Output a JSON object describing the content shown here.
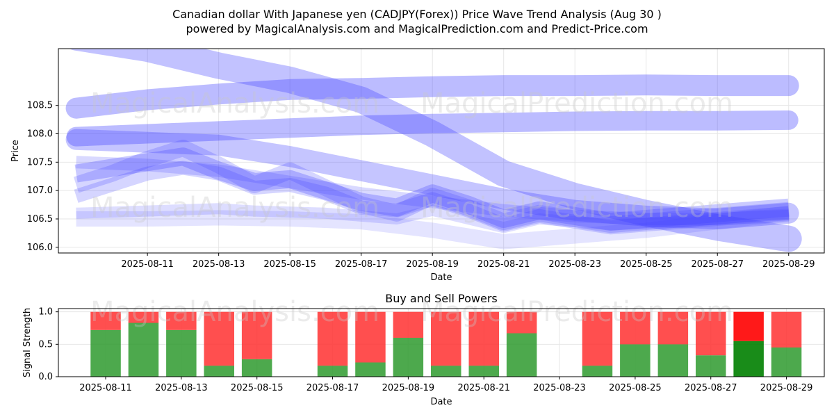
{
  "title_line1": "Canadian dollar With Japanese yen (CADJPY(Forex)) Price Wave Trend Analysis (Aug 30 )",
  "title_line2": "powered by MagicalAnalysis.com and MagicalPrediction.com and Predict-Price.com",
  "watermarks": [
    "MagicalAnalysis.com",
    "MagicalPrediction.com"
  ],
  "colors": {
    "wave": "#4040ff",
    "buy": "#2e9a2e",
    "sell": "#ff3030",
    "buy_strong": "#008000",
    "sell_strong": "#ff0000"
  },
  "chart_data": [
    {
      "type": "line",
      "title": "",
      "xlabel": "Date",
      "ylabel": "Price",
      "ylim": [
        105.9,
        109.5
      ],
      "xlim": [
        "2025-08-08T12:00",
        "2025-08-30T00:00"
      ],
      "grid": true,
      "x_ticks": [
        "2025-08-11",
        "2025-08-13",
        "2025-08-15",
        "2025-08-17",
        "2025-08-19",
        "2025-08-21",
        "2025-08-23",
        "2025-08-25",
        "2025-08-27",
        "2025-08-29"
      ],
      "y_ticks": [
        106.0,
        106.5,
        107.0,
        107.5,
        108.0,
        108.5
      ],
      "series": [
        {
          "x": [
            "2025-08-09",
            "2025-08-11",
            "2025-08-13",
            "2025-08-15",
            "2025-08-17",
            "2025-08-19",
            "2025-08-21",
            "2025-08-23",
            "2025-08-25",
            "2025-08-27",
            "2025-08-29"
          ],
          "values": [
            108.45,
            108.6,
            108.7,
            108.78,
            108.8,
            108.83,
            108.85,
            108.85,
            108.86,
            108.85,
            108.85
          ]
        },
        {
          "x": [
            "2025-08-09",
            "2025-08-11",
            "2025-08-13",
            "2025-08-15",
            "2025-08-17",
            "2025-08-19",
            "2025-08-21",
            "2025-08-23",
            "2025-08-25",
            "2025-08-27",
            "2025-08-29"
          ],
          "values": [
            107.95,
            108.0,
            108.05,
            108.1,
            108.15,
            108.18,
            108.2,
            108.22,
            108.23,
            108.23,
            108.24
          ]
        },
        {
          "x": [
            "2025-08-09",
            "2025-08-11",
            "2025-08-13",
            "2025-08-15",
            "2025-08-17",
            "2025-08-19",
            "2025-08-21",
            "2025-08-23",
            "2025-08-25",
            "2025-08-27",
            "2025-08-29"
          ],
          "values": [
            109.7,
            109.5,
            109.2,
            108.95,
            108.6,
            108.0,
            107.3,
            106.9,
            106.6,
            106.35,
            106.15
          ]
        },
        {
          "x": [
            "2025-08-09",
            "2025-08-11",
            "2025-08-13",
            "2025-08-15",
            "2025-08-17",
            "2025-08-19",
            "2025-08-21",
            "2025-08-23",
            "2025-08-25",
            "2025-08-27",
            "2025-08-29"
          ],
          "values": [
            107.9,
            107.85,
            107.8,
            107.6,
            107.35,
            107.1,
            106.85,
            106.65,
            106.55,
            106.5,
            106.6
          ]
        },
        {
          "x": [
            "2025-08-09",
            "2025-08-10",
            "2025-08-11",
            "2025-08-12",
            "2025-08-13",
            "2025-08-14",
            "2025-08-15",
            "2025-08-16",
            "2025-08-17",
            "2025-08-18",
            "2025-08-19",
            "2025-08-20",
            "2025-08-21",
            "2025-08-22",
            "2025-08-23",
            "2025-08-24",
            "2025-08-25",
            "2025-08-26",
            "2025-08-27",
            "2025-08-28",
            "2025-08-29"
          ],
          "values": [
            107.3,
            107.4,
            107.5,
            107.6,
            107.35,
            107.15,
            107.2,
            107.0,
            106.8,
            106.7,
            106.95,
            106.75,
            106.5,
            106.65,
            106.55,
            106.45,
            106.5,
            106.55,
            106.6,
            106.65,
            106.7
          ]
        },
        {
          "x": [
            "2025-08-09",
            "2025-08-10",
            "2025-08-11",
            "2025-08-12",
            "2025-08-13",
            "2025-08-14",
            "2025-08-15",
            "2025-08-16",
            "2025-08-17",
            "2025-08-18",
            "2025-08-19",
            "2025-08-20",
            "2025-08-21",
            "2025-08-22",
            "2025-08-23",
            "2025-08-24",
            "2025-08-25",
            "2025-08-26",
            "2025-08-27",
            "2025-08-28",
            "2025-08-29"
          ],
          "values": [
            107.1,
            107.3,
            107.55,
            107.75,
            107.45,
            107.1,
            107.35,
            107.05,
            106.75,
            106.6,
            106.9,
            106.7,
            106.45,
            106.6,
            106.5,
            106.4,
            106.45,
            106.5,
            106.55,
            106.6,
            106.65
          ]
        },
        {
          "x": [
            "2025-08-09",
            "2025-08-10",
            "2025-08-11",
            "2025-08-12",
            "2025-08-13",
            "2025-08-14",
            "2025-08-15",
            "2025-08-16",
            "2025-08-17",
            "2025-08-18",
            "2025-08-19",
            "2025-08-20",
            "2025-08-21",
            "2025-08-22",
            "2025-08-23",
            "2025-08-24",
            "2025-08-25",
            "2025-08-26",
            "2025-08-27",
            "2025-08-28",
            "2025-08-29"
          ],
          "values": [
            106.9,
            107.1,
            107.3,
            107.4,
            107.3,
            107.05,
            107.1,
            106.95,
            106.7,
            106.65,
            106.85,
            106.65,
            106.4,
            106.55,
            106.45,
            106.35,
            106.4,
            106.45,
            106.5,
            106.55,
            106.6
          ]
        },
        {
          "x": [
            "2025-08-09",
            "2025-08-10",
            "2025-08-11",
            "2025-08-12",
            "2025-08-13",
            "2025-08-14",
            "2025-08-15",
            "2025-08-16",
            "2025-08-17",
            "2025-08-18",
            "2025-08-19",
            "2025-08-20",
            "2025-08-21",
            "2025-08-22",
            "2025-08-23",
            "2025-08-24",
            "2025-08-25",
            "2025-08-26",
            "2025-08-27",
            "2025-08-28",
            "2025-08-29"
          ],
          "values": [
            106.6,
            106.62,
            106.64,
            106.66,
            106.68,
            106.64,
            106.62,
            106.6,
            106.55,
            106.5,
            106.65,
            106.5,
            106.35,
            106.5,
            106.45,
            106.4,
            106.42,
            106.45,
            106.5,
            106.55,
            106.58
          ]
        },
        {
          "x": [
            "2025-08-09",
            "2025-08-11",
            "2025-08-13",
            "2025-08-15",
            "2025-08-17",
            "2025-08-19",
            "2025-08-21",
            "2025-08-23",
            "2025-08-25",
            "2025-08-27",
            "2025-08-29"
          ],
          "values": [
            106.5,
            106.5,
            106.52,
            106.5,
            106.45,
            106.3,
            106.1,
            106.2,
            106.3,
            106.45,
            106.6
          ]
        },
        {
          "x": [
            "2025-08-09",
            "2025-08-11",
            "2025-08-13",
            "2025-08-15",
            "2025-08-17",
            "2025-08-19",
            "2025-08-21",
            "2025-08-23",
            "2025-08-25",
            "2025-08-27",
            "2025-08-29"
          ],
          "values": [
            107.5,
            107.45,
            107.35,
            107.15,
            106.95,
            106.8,
            106.65,
            106.55,
            106.5,
            106.5,
            106.55
          ]
        }
      ]
    },
    {
      "type": "bar",
      "title": "Buy and Sell Powers",
      "xlabel": "Date",
      "ylabel": "Signal Strength",
      "ylim": [
        0,
        1.05
      ],
      "xlim": [
        "2025-08-09T18:00",
        "2025-08-30T00:00"
      ],
      "grid": true,
      "x_ticks": [
        "2025-08-11",
        "2025-08-13",
        "2025-08-15",
        "2025-08-17",
        "2025-08-19",
        "2025-08-21",
        "2025-08-23",
        "2025-08-25",
        "2025-08-27",
        "2025-08-29"
      ],
      "y_ticks": [
        0.0,
        0.5,
        1.0
      ],
      "categories": [
        "2025-08-11",
        "2025-08-12",
        "2025-08-13",
        "2025-08-14",
        "2025-08-15",
        "2025-08-17",
        "2025-08-18",
        "2025-08-19",
        "2025-08-20",
        "2025-08-21",
        "2025-08-22",
        "2025-08-24",
        "2025-08-25",
        "2025-08-26",
        "2025-08-27",
        "2025-08-28",
        "2025-08-29"
      ],
      "series": [
        {
          "name": "",
          "values": [
            0.72,
            0.83,
            0.72,
            0.17,
            0.27,
            0.17,
            0.22,
            0.6,
            0.17,
            0.17,
            0.67,
            0.17,
            0.5,
            0.5,
            0.33,
            0.55,
            0.45
          ]
        },
        {
          "name": "",
          "values": [
            0.28,
            0.17,
            0.28,
            0.83,
            0.73,
            0.83,
            0.78,
            0.4,
            0.83,
            0.83,
            0.33,
            0.83,
            0.5,
            0.5,
            0.67,
            0.45,
            0.55
          ]
        }
      ],
      "strong_category": "2025-08-28"
    }
  ]
}
